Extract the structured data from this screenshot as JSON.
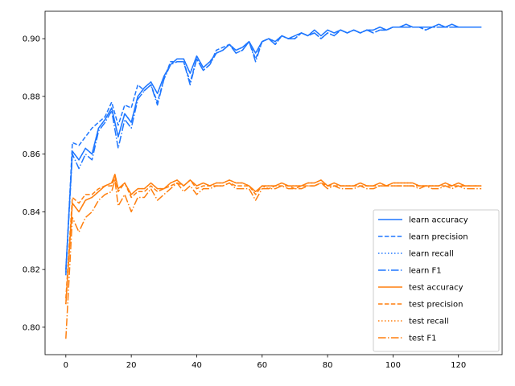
{
  "chart_data": {
    "type": "line",
    "title": "",
    "xlabel": "",
    "ylabel": "",
    "xlim": [
      -6.35,
      133.35
    ],
    "ylim": [
      0.7905,
      0.9095
    ],
    "xticks": [
      0,
      20,
      40,
      60,
      80,
      100,
      120
    ],
    "yticks": [
      0.8,
      0.82,
      0.84,
      0.86,
      0.88,
      0.9
    ],
    "ytick_labels": [
      "0.80",
      "0.82",
      "0.84",
      "0.86",
      "0.88",
      "0.90"
    ],
    "grid": false,
    "legend_position": "lower-right",
    "colors": {
      "learn": "#1f77ff",
      "test": "#ff7f0e"
    },
    "series": [
      {
        "name": "learn accuracy",
        "group": "learn",
        "dash": "solid",
        "x": [
          0,
          2,
          4,
          6,
          8,
          10,
          12,
          14,
          16,
          18,
          20,
          22,
          24,
          26,
          28,
          30,
          32,
          34,
          36,
          38,
          40,
          42,
          44,
          46,
          48,
          50,
          52,
          54,
          56,
          58,
          60,
          62,
          64,
          66,
          68,
          70,
          72,
          74,
          76,
          78,
          80,
          82,
          84,
          86,
          88,
          90,
          92,
          94,
          96,
          98,
          100,
          102,
          104,
          106,
          108,
          110,
          112,
          114,
          116,
          118,
          120,
          122,
          124,
          126,
          127
        ],
        "y": [
          0.82,
          0.861,
          0.858,
          0.862,
          0.86,
          0.869,
          0.872,
          0.876,
          0.866,
          0.874,
          0.871,
          0.88,
          0.883,
          0.885,
          0.881,
          0.887,
          0.891,
          0.893,
          0.893,
          0.888,
          0.894,
          0.89,
          0.892,
          0.895,
          0.896,
          0.898,
          0.896,
          0.897,
          0.899,
          0.895,
          0.899,
          0.9,
          0.899,
          0.901,
          0.9,
          0.901,
          0.902,
          0.901,
          0.903,
          0.901,
          0.903,
          0.902,
          0.903,
          0.902,
          0.903,
          0.902,
          0.903,
          0.903,
          0.904,
          0.903,
          0.904,
          0.904,
          0.905,
          0.904,
          0.904,
          0.904,
          0.904,
          0.905,
          0.904,
          0.905,
          0.904,
          0.904,
          0.904,
          0.904,
          0.904
        ]
      },
      {
        "name": "learn precision",
        "group": "learn",
        "dash": "dashed",
        "x": [
          0,
          2,
          4,
          6,
          8,
          10,
          12,
          14,
          16,
          18,
          20,
          22,
          24,
          26,
          28,
          30,
          32,
          34,
          36,
          38,
          40,
          42,
          44,
          46,
          48,
          50,
          52,
          54,
          56,
          58,
          60,
          62,
          64,
          66,
          68,
          70,
          72,
          74,
          76,
          78,
          80,
          82,
          84,
          86,
          88,
          90,
          92,
          94,
          96,
          98,
          100,
          102,
          104,
          106,
          108,
          110,
          112,
          114,
          116,
          118,
          120,
          122,
          124,
          126,
          127
        ],
        "y": [
          0.818,
          0.864,
          0.863,
          0.866,
          0.869,
          0.871,
          0.873,
          0.878,
          0.87,
          0.877,
          0.876,
          0.884,
          0.882,
          0.884,
          0.878,
          0.886,
          0.892,
          0.892,
          0.892,
          0.885,
          0.893,
          0.889,
          0.891,
          0.896,
          0.897,
          0.898,
          0.895,
          0.896,
          0.899,
          0.893,
          0.899,
          0.9,
          0.898,
          0.901,
          0.9,
          0.9,
          0.902,
          0.901,
          0.902,
          0.9,
          0.902,
          0.901,
          0.903,
          0.902,
          0.903,
          0.902,
          0.903,
          0.902,
          0.903,
          0.903,
          0.904,
          0.904,
          0.904,
          0.904,
          0.904,
          0.903,
          0.904,
          0.904,
          0.904,
          0.904,
          0.904,
          0.904,
          0.904,
          0.904,
          0.904
        ]
      },
      {
        "name": "learn recall",
        "group": "learn",
        "dash": "dotted",
        "x": [
          0,
          2,
          4,
          6,
          8,
          10,
          12,
          14,
          16,
          18,
          20,
          22,
          24,
          26,
          28,
          30,
          32,
          34,
          36,
          38,
          40,
          42,
          44,
          46,
          48,
          50,
          52,
          54,
          56,
          58,
          60,
          62,
          64,
          66,
          68,
          70,
          72,
          74,
          76,
          78,
          80,
          82,
          84,
          86,
          88,
          90,
          92,
          94,
          96,
          98,
          100,
          102,
          104,
          106,
          108,
          110,
          112,
          114,
          116,
          118,
          120,
          122,
          124,
          126,
          127
        ],
        "y": [
          0.82,
          0.861,
          0.858,
          0.862,
          0.86,
          0.869,
          0.872,
          0.876,
          0.866,
          0.874,
          0.871,
          0.88,
          0.883,
          0.885,
          0.881,
          0.887,
          0.891,
          0.893,
          0.893,
          0.888,
          0.894,
          0.89,
          0.892,
          0.895,
          0.896,
          0.898,
          0.896,
          0.897,
          0.899,
          0.895,
          0.899,
          0.9,
          0.899,
          0.901,
          0.9,
          0.901,
          0.902,
          0.901,
          0.903,
          0.901,
          0.903,
          0.902,
          0.903,
          0.902,
          0.903,
          0.902,
          0.903,
          0.903,
          0.904,
          0.903,
          0.904,
          0.904,
          0.905,
          0.904,
          0.904,
          0.904,
          0.904,
          0.905,
          0.904,
          0.905,
          0.904,
          0.904,
          0.904,
          0.904,
          0.904
        ]
      },
      {
        "name": "learn F1",
        "group": "learn",
        "dash": "dashdot",
        "x": [
          0,
          2,
          4,
          6,
          8,
          10,
          12,
          14,
          16,
          18,
          20,
          22,
          24,
          26,
          28,
          30,
          32,
          34,
          36,
          38,
          40,
          42,
          44,
          46,
          48,
          50,
          52,
          54,
          56,
          58,
          60,
          62,
          64,
          66,
          68,
          70,
          72,
          74,
          76,
          78,
          80,
          82,
          84,
          86,
          88,
          90,
          92,
          94,
          96,
          98,
          100,
          102,
          104,
          106,
          108,
          110,
          112,
          114,
          116,
          118,
          120,
          122,
          124,
          126,
          127
        ],
        "y": [
          0.819,
          0.86,
          0.855,
          0.86,
          0.858,
          0.868,
          0.871,
          0.875,
          0.862,
          0.872,
          0.869,
          0.879,
          0.882,
          0.884,
          0.877,
          0.886,
          0.891,
          0.892,
          0.892,
          0.884,
          0.893,
          0.889,
          0.891,
          0.895,
          0.896,
          0.898,
          0.895,
          0.896,
          0.899,
          0.892,
          0.899,
          0.9,
          0.898,
          0.901,
          0.9,
          0.9,
          0.902,
          0.901,
          0.902,
          0.9,
          0.902,
          0.901,
          0.903,
          0.902,
          0.903,
          0.902,
          0.903,
          0.902,
          0.903,
          0.903,
          0.904,
          0.904,
          0.904,
          0.904,
          0.904,
          0.903,
          0.904,
          0.904,
          0.904,
          0.904,
          0.904,
          0.904,
          0.904,
          0.904,
          0.904
        ]
      },
      {
        "name": "test accuracy",
        "group": "test",
        "dash": "solid",
        "x": [
          0,
          2,
          4,
          6,
          8,
          10,
          12,
          14,
          15,
          16,
          18,
          20,
          22,
          24,
          26,
          28,
          30,
          32,
          34,
          36,
          38,
          40,
          42,
          44,
          46,
          48,
          50,
          52,
          54,
          56,
          58,
          60,
          62,
          64,
          66,
          68,
          70,
          72,
          74,
          76,
          78,
          80,
          82,
          84,
          86,
          88,
          90,
          92,
          94,
          96,
          98,
          100,
          102,
          104,
          106,
          108,
          110,
          112,
          114,
          116,
          118,
          120,
          122,
          124,
          126,
          127
        ],
        "y": [
          0.808,
          0.843,
          0.84,
          0.844,
          0.845,
          0.847,
          0.849,
          0.85,
          0.853,
          0.848,
          0.85,
          0.846,
          0.848,
          0.848,
          0.85,
          0.848,
          0.848,
          0.85,
          0.851,
          0.849,
          0.851,
          0.849,
          0.85,
          0.849,
          0.85,
          0.85,
          0.851,
          0.85,
          0.85,
          0.849,
          0.847,
          0.849,
          0.849,
          0.849,
          0.85,
          0.849,
          0.849,
          0.849,
          0.85,
          0.85,
          0.851,
          0.849,
          0.85,
          0.849,
          0.849,
          0.849,
          0.85,
          0.849,
          0.849,
          0.85,
          0.849,
          0.85,
          0.85,
          0.85,
          0.85,
          0.849,
          0.849,
          0.849,
          0.849,
          0.85,
          0.849,
          0.85,
          0.849,
          0.849,
          0.849,
          0.849
        ]
      },
      {
        "name": "test precision",
        "group": "test",
        "dash": "dashed",
        "x": [
          0,
          2,
          4,
          6,
          8,
          10,
          12,
          14,
          15,
          16,
          18,
          20,
          22,
          24,
          26,
          28,
          30,
          32,
          34,
          36,
          38,
          40,
          42,
          44,
          46,
          48,
          50,
          52,
          54,
          56,
          58,
          60,
          62,
          64,
          66,
          68,
          70,
          72,
          74,
          76,
          78,
          80,
          82,
          84,
          86,
          88,
          90,
          92,
          94,
          96,
          98,
          100,
          102,
          104,
          106,
          108,
          110,
          112,
          114,
          116,
          118,
          120,
          122,
          124,
          126,
          127
        ],
        "y": [
          0.81,
          0.845,
          0.843,
          0.846,
          0.846,
          0.848,
          0.849,
          0.849,
          0.852,
          0.847,
          0.85,
          0.845,
          0.847,
          0.847,
          0.849,
          0.847,
          0.848,
          0.849,
          0.85,
          0.849,
          0.851,
          0.848,
          0.849,
          0.849,
          0.849,
          0.849,
          0.85,
          0.849,
          0.849,
          0.849,
          0.846,
          0.849,
          0.848,
          0.849,
          0.849,
          0.849,
          0.848,
          0.849,
          0.849,
          0.849,
          0.85,
          0.849,
          0.849,
          0.849,
          0.849,
          0.849,
          0.849,
          0.849,
          0.849,
          0.849,
          0.849,
          0.849,
          0.849,
          0.849,
          0.849,
          0.849,
          0.849,
          0.849,
          0.849,
          0.849,
          0.849,
          0.849,
          0.849,
          0.849,
          0.849,
          0.849
        ]
      },
      {
        "name": "test recall",
        "group": "test",
        "dash": "dotted",
        "x": [
          0,
          2,
          4,
          6,
          8,
          10,
          12,
          14,
          15,
          16,
          18,
          20,
          22,
          24,
          26,
          28,
          30,
          32,
          34,
          36,
          38,
          40,
          42,
          44,
          46,
          48,
          50,
          52,
          54,
          56,
          58,
          60,
          62,
          64,
          66,
          68,
          70,
          72,
          74,
          76,
          78,
          80,
          82,
          84,
          86,
          88,
          90,
          92,
          94,
          96,
          98,
          100,
          102,
          104,
          106,
          108,
          110,
          112,
          114,
          116,
          118,
          120,
          122,
          124,
          126,
          127
        ],
        "y": [
          0.808,
          0.843,
          0.84,
          0.844,
          0.845,
          0.847,
          0.849,
          0.85,
          0.853,
          0.848,
          0.85,
          0.846,
          0.848,
          0.848,
          0.85,
          0.848,
          0.848,
          0.85,
          0.851,
          0.849,
          0.851,
          0.849,
          0.85,
          0.849,
          0.85,
          0.85,
          0.851,
          0.85,
          0.85,
          0.849,
          0.847,
          0.849,
          0.849,
          0.849,
          0.85,
          0.849,
          0.849,
          0.849,
          0.85,
          0.85,
          0.851,
          0.849,
          0.85,
          0.849,
          0.849,
          0.849,
          0.85,
          0.849,
          0.849,
          0.85,
          0.849,
          0.85,
          0.85,
          0.85,
          0.85,
          0.849,
          0.849,
          0.849,
          0.849,
          0.85,
          0.849,
          0.85,
          0.849,
          0.849,
          0.849,
          0.849
        ]
      },
      {
        "name": "test F1",
        "group": "test",
        "dash": "dashdot",
        "x": [
          0,
          2,
          4,
          6,
          8,
          10,
          12,
          14,
          15,
          16,
          18,
          20,
          22,
          24,
          26,
          28,
          30,
          32,
          34,
          36,
          38,
          40,
          42,
          44,
          46,
          48,
          50,
          52,
          54,
          56,
          58,
          60,
          62,
          64,
          66,
          68,
          70,
          72,
          74,
          76,
          78,
          80,
          82,
          84,
          86,
          88,
          90,
          92,
          94,
          96,
          98,
          100,
          102,
          104,
          106,
          108,
          110,
          112,
          114,
          116,
          118,
          120,
          122,
          124,
          126,
          127
        ],
        "y": [
          0.796,
          0.838,
          0.833,
          0.838,
          0.84,
          0.844,
          0.846,
          0.847,
          0.851,
          0.842,
          0.846,
          0.84,
          0.845,
          0.845,
          0.848,
          0.844,
          0.846,
          0.848,
          0.85,
          0.847,
          0.849,
          0.846,
          0.848,
          0.848,
          0.849,
          0.849,
          0.85,
          0.848,
          0.848,
          0.848,
          0.844,
          0.848,
          0.848,
          0.848,
          0.849,
          0.848,
          0.848,
          0.848,
          0.849,
          0.849,
          0.85,
          0.848,
          0.849,
          0.848,
          0.848,
          0.848,
          0.849,
          0.848,
          0.848,
          0.849,
          0.849,
          0.849,
          0.849,
          0.849,
          0.849,
          0.848,
          0.849,
          0.848,
          0.848,
          0.849,
          0.848,
          0.849,
          0.848,
          0.848,
          0.848,
          0.848
        ]
      }
    ]
  }
}
